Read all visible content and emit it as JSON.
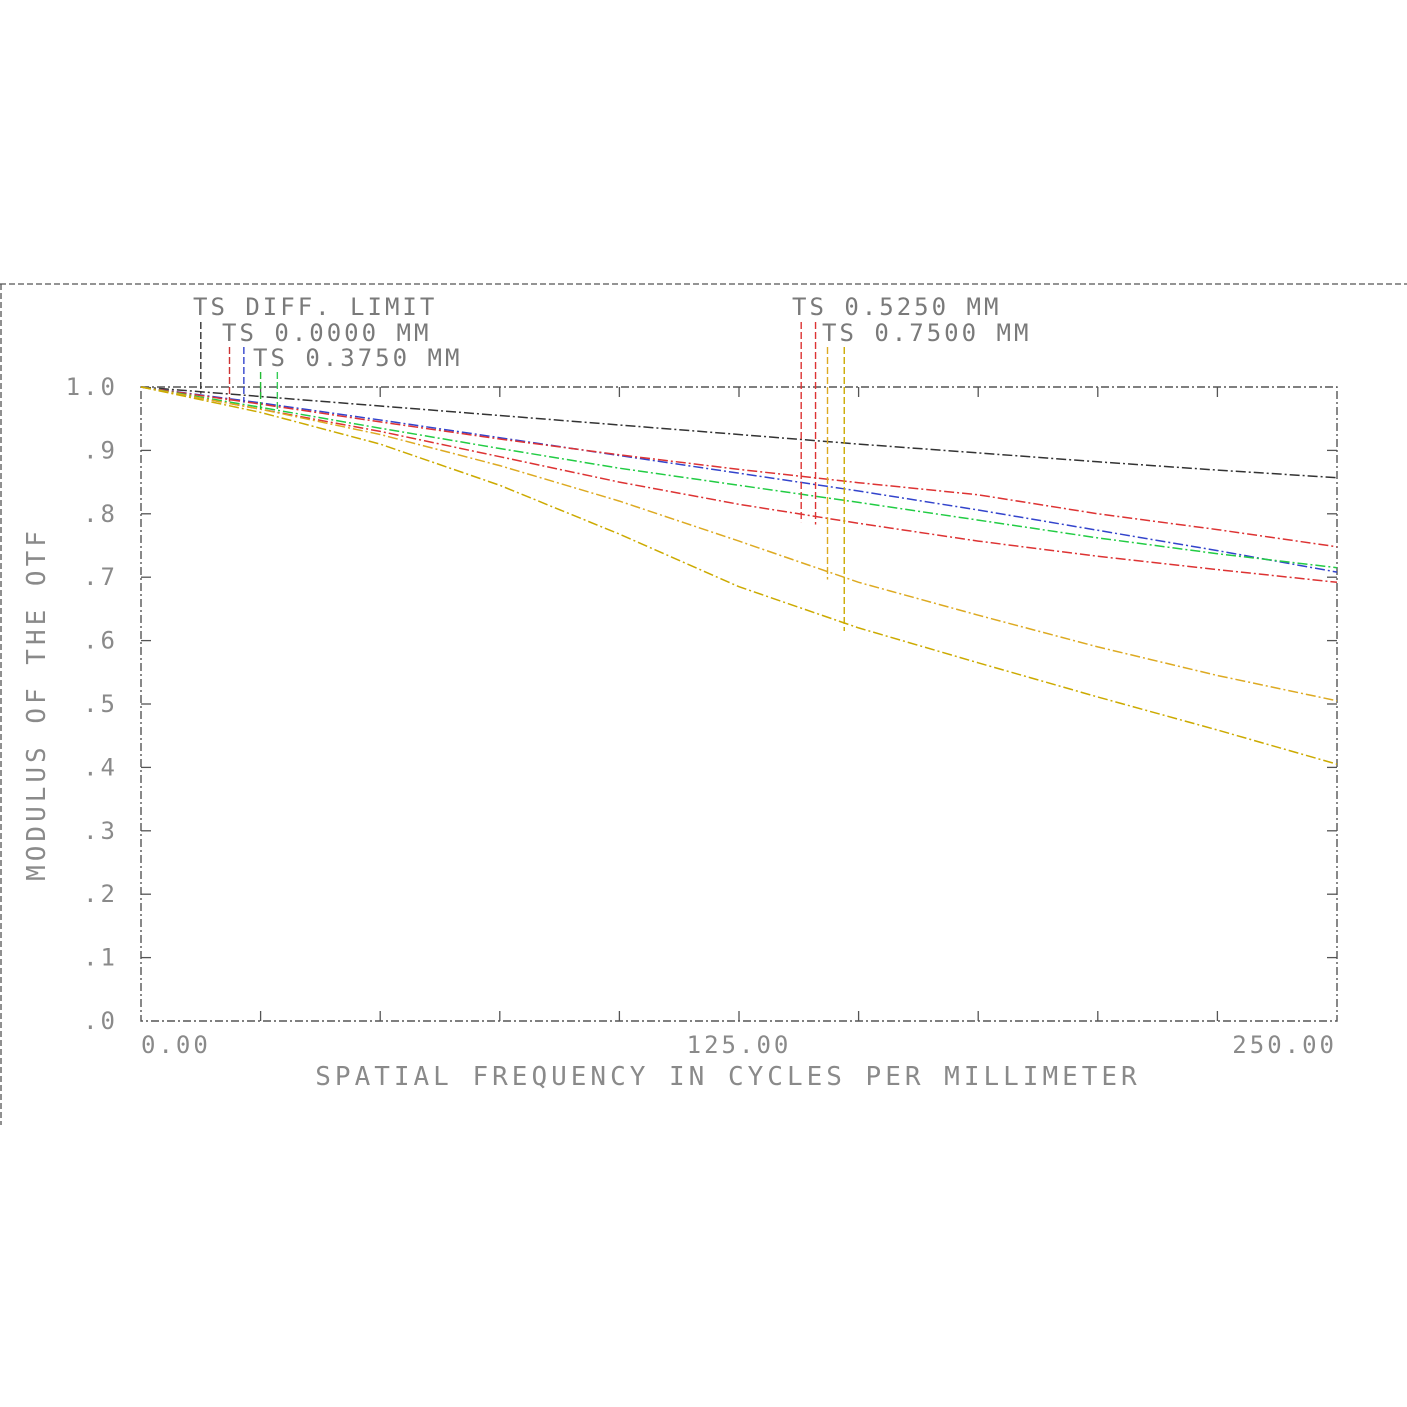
{
  "chart_data": {
    "type": "line",
    "xlabel": "SPATIAL FREQUENCY IN CYCLES PER MILLIMETER",
    "ylabel": "MODULUS OF THE OTF",
    "xlim": [
      0,
      250
    ],
    "ylim": [
      0,
      1.0
    ],
    "x_tick_labels": [
      {
        "value": 0,
        "label": "0.00"
      },
      {
        "value": 125,
        "label": "125.00"
      },
      {
        "value": 250,
        "label": "250.00"
      }
    ],
    "y_tick_labels": [
      {
        "value": 0.0,
        "label": ".0"
      },
      {
        "value": 0.1,
        "label": ".1"
      },
      {
        "value": 0.2,
        "label": ".2"
      },
      {
        "value": 0.3,
        "label": ".3"
      },
      {
        "value": 0.4,
        "label": ".4"
      },
      {
        "value": 0.5,
        "label": ".5"
      },
      {
        "value": 0.6,
        "label": ".6"
      },
      {
        "value": 0.7,
        "label": ".7"
      },
      {
        "value": 0.8,
        "label": ".8"
      },
      {
        "value": 0.9,
        "label": ".9"
      },
      {
        "value": 1.0,
        "label": "1.0"
      }
    ],
    "legend": [
      {
        "label": "TS DIFF. LIMIT",
        "colors": [
          "#333333"
        ],
        "x": [
          12.5,
          14.5
        ]
      },
      {
        "label": "TS 0.0000 MM",
        "colors": [
          "#cc3333",
          "#3344cc"
        ],
        "x": [
          18.5,
          21.5
        ]
      },
      {
        "label": "TS 0.3750 MM",
        "colors": [
          "#22bb33",
          "#33cc55"
        ],
        "x": [
          25,
          28.5
        ]
      },
      {
        "label": "TS 0.5250 MM",
        "colors": [
          "#dd3333",
          "#dd3333"
        ],
        "x": [
          138,
          141
        ]
      },
      {
        "label": "TS 0.7500 MM",
        "colors": [
          "#ddaa22",
          "#ccaa00"
        ],
        "x": [
          143.5,
          147
        ]
      }
    ],
    "series": [
      {
        "color": "#333333",
        "dash": "10,3,2,3",
        "x": [
          0,
          25,
          50,
          75,
          100,
          125,
          150,
          175,
          200,
          225,
          250
        ],
        "y": [
          1.0,
          0.985,
          0.97,
          0.955,
          0.94,
          0.925,
          0.91,
          0.896,
          0.882,
          0.869,
          0.857
        ]
      },
      {
        "color": "#3344cc",
        "dash": "10,3,2,3",
        "x": [
          0,
          25,
          50,
          75,
          100,
          125,
          150,
          175,
          200,
          225,
          250
        ],
        "y": [
          1.0,
          0.975,
          0.948,
          0.92,
          0.892,
          0.864,
          0.836,
          0.806,
          0.774,
          0.742,
          0.708
        ]
      },
      {
        "color": "#dd3333",
        "dash": "10,3,2,3",
        "x": [
          0,
          25,
          50,
          75,
          100,
          125,
          150,
          175,
          200,
          225,
          250
        ],
        "y": [
          1.0,
          0.973,
          0.945,
          0.918,
          0.893,
          0.87,
          0.849,
          0.83,
          0.8,
          0.775,
          0.748
        ]
      },
      {
        "color": "#dd3333",
        "dash": "10,3,2,3",
        "x": [
          0,
          25,
          50,
          75,
          100,
          125,
          150,
          175,
          200,
          225,
          250
        ],
        "y": [
          1.0,
          0.965,
          0.93,
          0.89,
          0.85,
          0.815,
          0.785,
          0.757,
          0.733,
          0.712,
          0.692
        ]
      },
      {
        "color": "#22cc44",
        "dash": "10,3,2,3",
        "x": [
          0,
          25,
          50,
          75,
          100,
          125,
          150,
          175,
          200,
          225,
          250
        ],
        "y": [
          1.0,
          0.968,
          0.935,
          0.903,
          0.872,
          0.845,
          0.818,
          0.79,
          0.762,
          0.737,
          0.715
        ]
      },
      {
        "color": "#ddaa22",
        "dash": "10,3,2,3",
        "x": [
          0,
          25,
          50,
          75,
          100,
          125,
          150,
          175,
          200,
          225,
          250
        ],
        "y": [
          1.0,
          0.965,
          0.925,
          0.876,
          0.82,
          0.757,
          0.692,
          0.64,
          0.59,
          0.545,
          0.505
        ]
      },
      {
        "color": "#ccaa00",
        "dash": "10,3,2,3",
        "x": [
          0,
          25,
          50,
          75,
          100,
          125,
          150,
          175,
          200,
          225,
          250
        ],
        "y": [
          1.0,
          0.96,
          0.91,
          0.845,
          0.768,
          0.685,
          0.62,
          0.565,
          0.511,
          0.459,
          0.405
        ]
      }
    ]
  }
}
